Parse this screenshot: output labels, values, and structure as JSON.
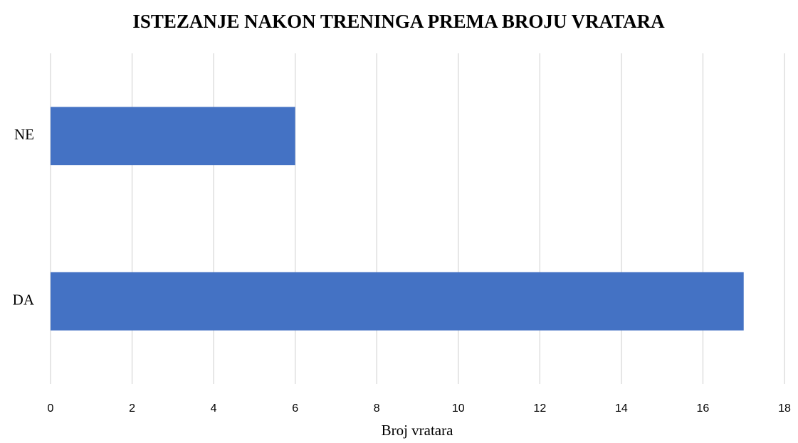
{
  "chart_data": {
    "type": "bar",
    "orientation": "horizontal",
    "title": "ISTEZANJE NAKON TRENINGA PREMA BROJU VRATARA",
    "x_label": "Broj vratara",
    "categories": [
      "DA",
      "NE"
    ],
    "values": [
      17,
      6
    ],
    "color": "#4472c4",
    "xlim": [
      0,
      18
    ],
    "xticks": [
      0,
      2,
      4,
      6,
      8,
      10,
      12,
      14,
      16,
      18
    ],
    "grid": true
  }
}
